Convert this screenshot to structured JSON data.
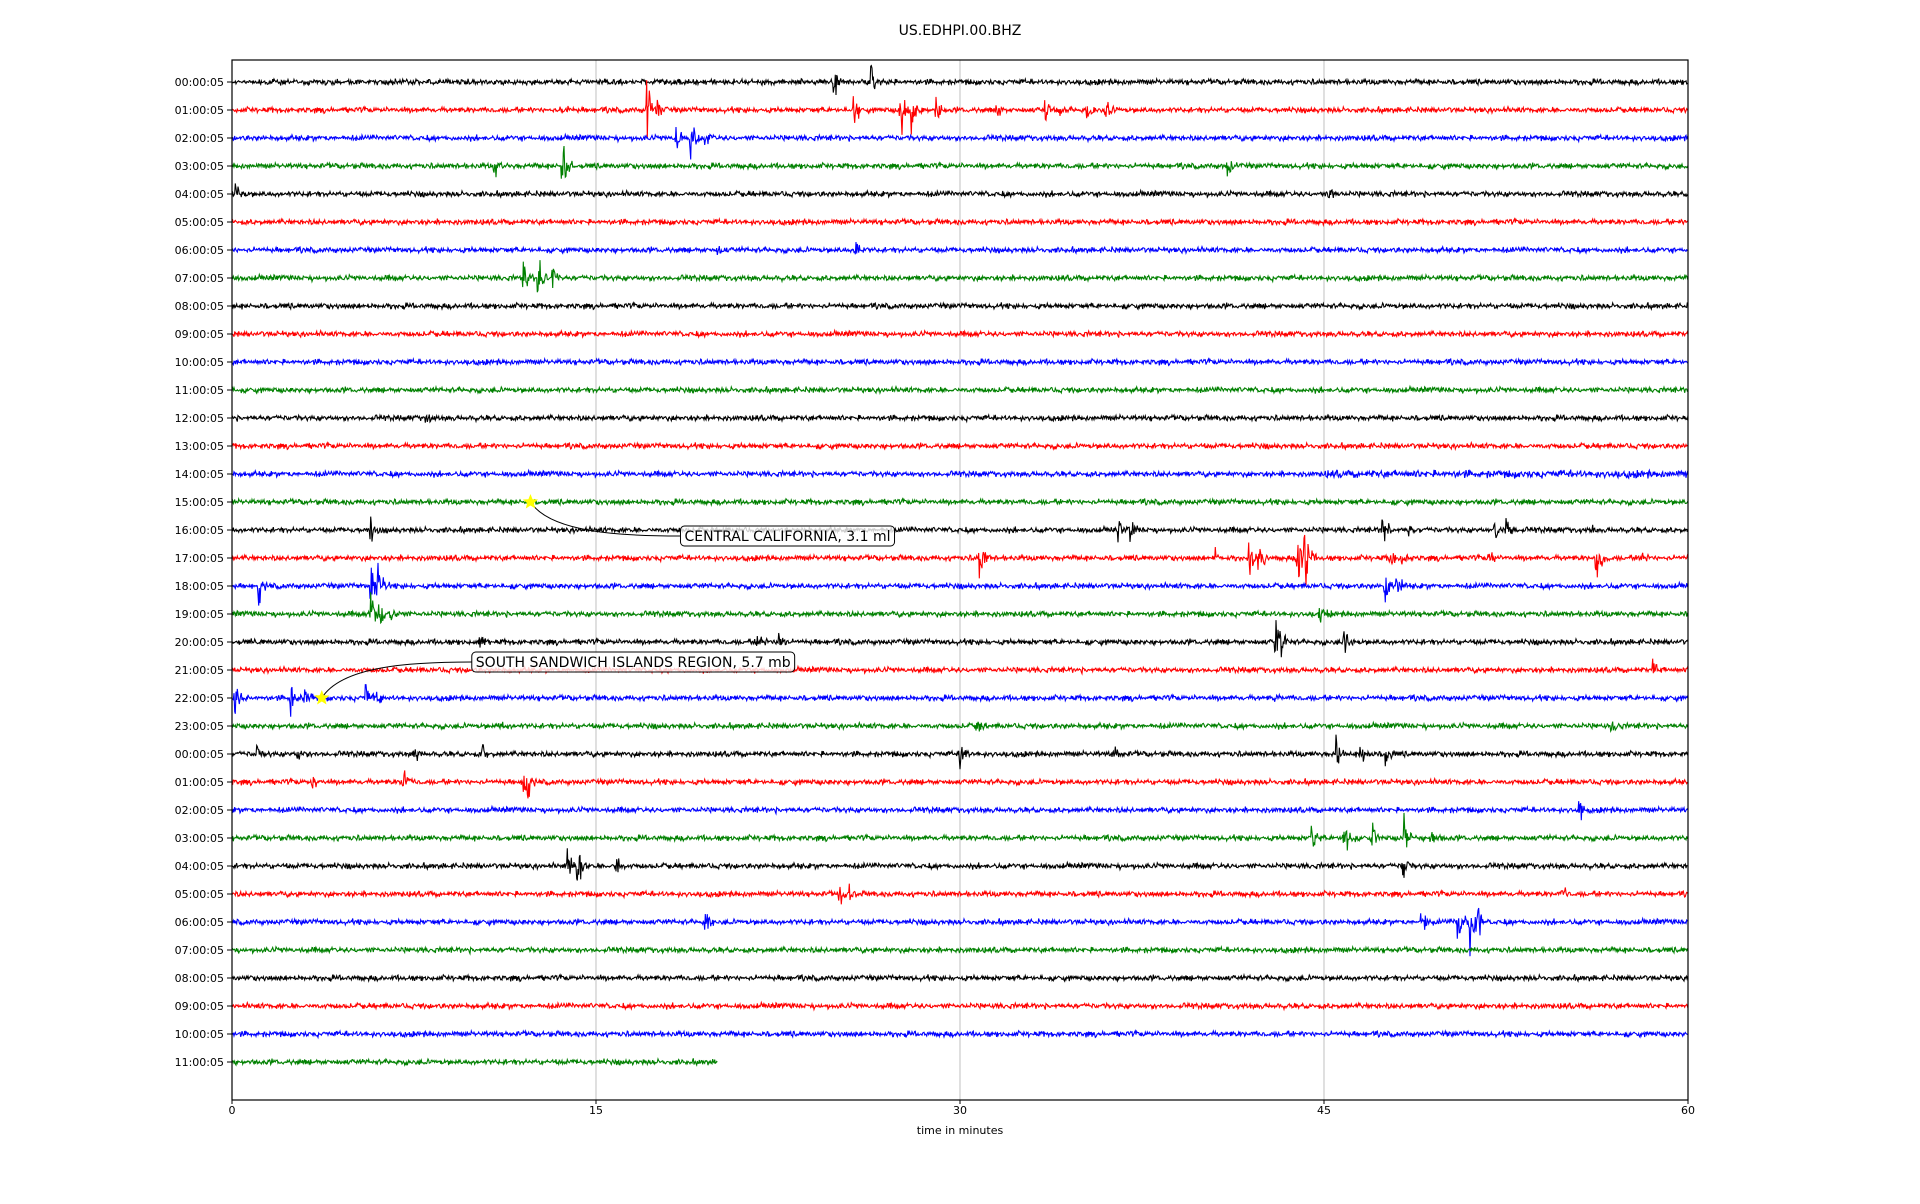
{
  "chart_data": {
    "type": "line",
    "title": "US.EDHPI.00.BHZ",
    "xlabel": "time in minutes",
    "ylabel": "",
    "xlim": [
      0,
      60
    ],
    "x_ticks": [
      "0",
      "15",
      "30",
      "45",
      "60"
    ],
    "x_tick_values": [
      0,
      15,
      30,
      45,
      60
    ],
    "grid": "vertical at x ticks",
    "row_labels": [
      "00:00:05",
      "01:00:05",
      "02:00:05",
      "03:00:05",
      "04:00:05",
      "05:00:05",
      "06:00:05",
      "07:00:05",
      "08:00:05",
      "09:00:05",
      "10:00:05",
      "11:00:05",
      "12:00:05",
      "13:00:05",
      "14:00:05",
      "15:00:05",
      "16:00:05",
      "17:00:05",
      "18:00:05",
      "19:00:05",
      "20:00:05",
      "21:00:05",
      "22:00:05",
      "23:00:05",
      "00:00:05",
      "01:00:05",
      "02:00:05",
      "03:00:05",
      "04:00:05",
      "05:00:05",
      "06:00:05",
      "07:00:05",
      "08:00:05",
      "09:00:05",
      "10:00:05",
      "11:00:05"
    ],
    "colors": [
      "#000000",
      "#ff0000",
      "#0000ff",
      "#008000"
    ],
    "last_row_end_minute": 20,
    "events_minutes_by_row": {
      "0": [
        [
          24.8,
          14
        ],
        [
          26.3,
          8
        ]
      ],
      "1": [
        [
          13.6,
          5
        ],
        [
          17.1,
          18
        ],
        [
          17.5,
          8
        ],
        [
          25.6,
          10
        ],
        [
          27.5,
          22
        ],
        [
          28,
          14
        ],
        [
          29,
          10
        ],
        [
          31.5,
          6
        ],
        [
          33.5,
          8
        ],
        [
          34,
          6
        ],
        [
          35.2,
          8
        ],
        [
          36,
          6
        ]
      ],
      "2": [
        [
          18.3,
          10
        ],
        [
          18.9,
          12
        ],
        [
          19.5,
          7
        ]
      ],
      "3": [
        [
          10.8,
          9
        ],
        [
          13.6,
          20
        ],
        [
          41,
          8
        ]
      ],
      "4": [
        [
          0.1,
          6
        ],
        [
          45.2,
          5
        ]
      ],
      "6": [
        [
          20,
          4
        ],
        [
          25.7,
          8
        ]
      ],
      "7": [
        [
          12,
          10
        ],
        [
          12.6,
          18
        ],
        [
          13.2,
          7
        ]
      ],
      "12": [
        [
          8,
          5
        ]
      ],
      "16": [
        [
          5.7,
          7
        ],
        [
          36.5,
          7
        ],
        [
          37,
          6
        ],
        [
          47.4,
          12
        ],
        [
          48.5,
          5
        ],
        [
          52,
          7
        ],
        [
          52.5,
          8
        ],
        [
          56,
          5
        ]
      ],
      "17": [
        [
          30.8,
          13
        ],
        [
          40.5,
          9
        ],
        [
          41.9,
          10
        ],
        [
          42.3,
          15
        ],
        [
          43.9,
          15
        ],
        [
          44.2,
          18
        ],
        [
          47.7,
          8
        ],
        [
          48.2,
          6
        ],
        [
          51.8,
          6
        ],
        [
          56.2,
          14
        ],
        [
          58,
          6
        ]
      ],
      "18": [
        [
          1.1,
          9
        ],
        [
          5.7,
          18
        ],
        [
          6,
          12
        ],
        [
          47.5,
          15
        ],
        [
          48,
          9
        ]
      ],
      "19": [
        [
          5.7,
          14
        ],
        [
          6,
          10
        ],
        [
          6.5,
          8
        ],
        [
          44.8,
          8
        ]
      ],
      "20": [
        [
          0.8,
          4
        ],
        [
          10.2,
          7
        ],
        [
          21.6,
          10
        ],
        [
          22.5,
          5
        ],
        [
          43,
          12
        ],
        [
          43.2,
          8
        ],
        [
          45.8,
          12
        ]
      ],
      "21": [
        [
          58.5,
          10
        ]
      ],
      "22": [
        [
          0.1,
          14
        ],
        [
          2.4,
          10
        ],
        [
          3,
          6
        ],
        [
          5.5,
          8
        ],
        [
          6,
          6
        ],
        [
          43,
          4
        ]
      ],
      "23": [
        [
          11,
          5
        ],
        [
          30.7,
          6
        ],
        [
          56.8,
          6
        ]
      ],
      "24": [
        [
          1,
          5
        ],
        [
          2.7,
          5
        ],
        [
          7.5,
          5
        ],
        [
          10.3,
          5
        ],
        [
          30,
          8
        ],
        [
          36.3,
          6
        ],
        [
          45.5,
          10
        ],
        [
          46.5,
          7
        ],
        [
          47.5,
          9
        ]
      ],
      "25": [
        [
          3.3,
          4
        ],
        [
          7,
          10
        ],
        [
          12,
          9
        ],
        [
          12.2,
          5
        ]
      ],
      "26": [
        [
          55.5,
          7
        ]
      ],
      "27": [
        [
          44.5,
          8
        ],
        [
          45.8,
          12
        ],
        [
          47,
          7
        ],
        [
          48.3,
          14
        ],
        [
          49.4,
          6
        ]
      ],
      "28": [
        [
          13.8,
          12
        ],
        [
          14.2,
          14
        ],
        [
          15.8,
          6
        ],
        [
          48.2,
          8
        ]
      ],
      "29": [
        [
          25,
          7
        ],
        [
          25.4,
          5
        ],
        [
          54.8,
          4
        ]
      ],
      "30": [
        [
          19.5,
          10
        ],
        [
          49,
          11
        ],
        [
          50.5,
          10
        ],
        [
          51,
          18
        ],
        [
          51.3,
          8
        ]
      ]
    },
    "noisy_segments": [
      {
        "row": 14,
        "from": 45,
        "to": 60
      }
    ],
    "annotations": [
      {
        "text": "CENTRAL CALIFORNIA, 3.1 ml",
        "row": 15,
        "minute": 12.3,
        "marker": "star",
        "marker_color": "#ffff00"
      },
      {
        "text": "SOUTH SANDWICH ISLANDS REGION, 5.7 mb",
        "row": 22,
        "minute": 3.7,
        "marker": "star",
        "marker_color": "#ffff00"
      }
    ]
  }
}
